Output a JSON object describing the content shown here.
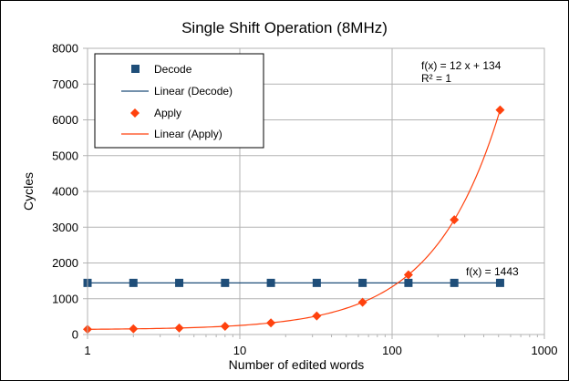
{
  "chart_data": {
    "type": "scatter",
    "title": "Single Shift Operation (8MHz)",
    "xlabel": "Number of edited words",
    "ylabel": "Cycles",
    "xscale": "log",
    "xlim": [
      1,
      1000
    ],
    "ylim": [
      0,
      8000
    ],
    "xticks": [
      "1",
      "10",
      "100",
      "1000"
    ],
    "yticks": [
      "0",
      "1000",
      "2000",
      "3000",
      "4000",
      "5000",
      "6000",
      "7000",
      "8000"
    ],
    "grid": true,
    "legend_position": "top-left",
    "series": [
      {
        "name": "Decode",
        "kind": "markers",
        "marker": "square",
        "color": "#1f4e79",
        "x": [
          1,
          2,
          4,
          8,
          16,
          32,
          64,
          128,
          256,
          512
        ],
        "y": [
          1443,
          1443,
          1443,
          1443,
          1443,
          1443,
          1443,
          1443,
          1443,
          1443
        ]
      },
      {
        "name": "Linear (Decode)",
        "kind": "trendline",
        "color": "#1f4e79",
        "formula": "f(x) = 1443",
        "slope": 0,
        "intercept": 1443
      },
      {
        "name": "Apply",
        "kind": "markers",
        "marker": "diamond",
        "color": "#ff420e",
        "x": [
          1,
          2,
          4,
          8,
          16,
          32,
          64,
          128,
          256,
          512
        ],
        "y": [
          146,
          158,
          182,
          230,
          326,
          518,
          902,
          1670,
          3206,
          6278
        ]
      },
      {
        "name": "Linear (Apply)",
        "kind": "trendline",
        "color": "#ff420e",
        "formula": "f(x) = 12 x + 134",
        "r2": "R² = 1",
        "slope": 12,
        "intercept": 134
      }
    ]
  }
}
